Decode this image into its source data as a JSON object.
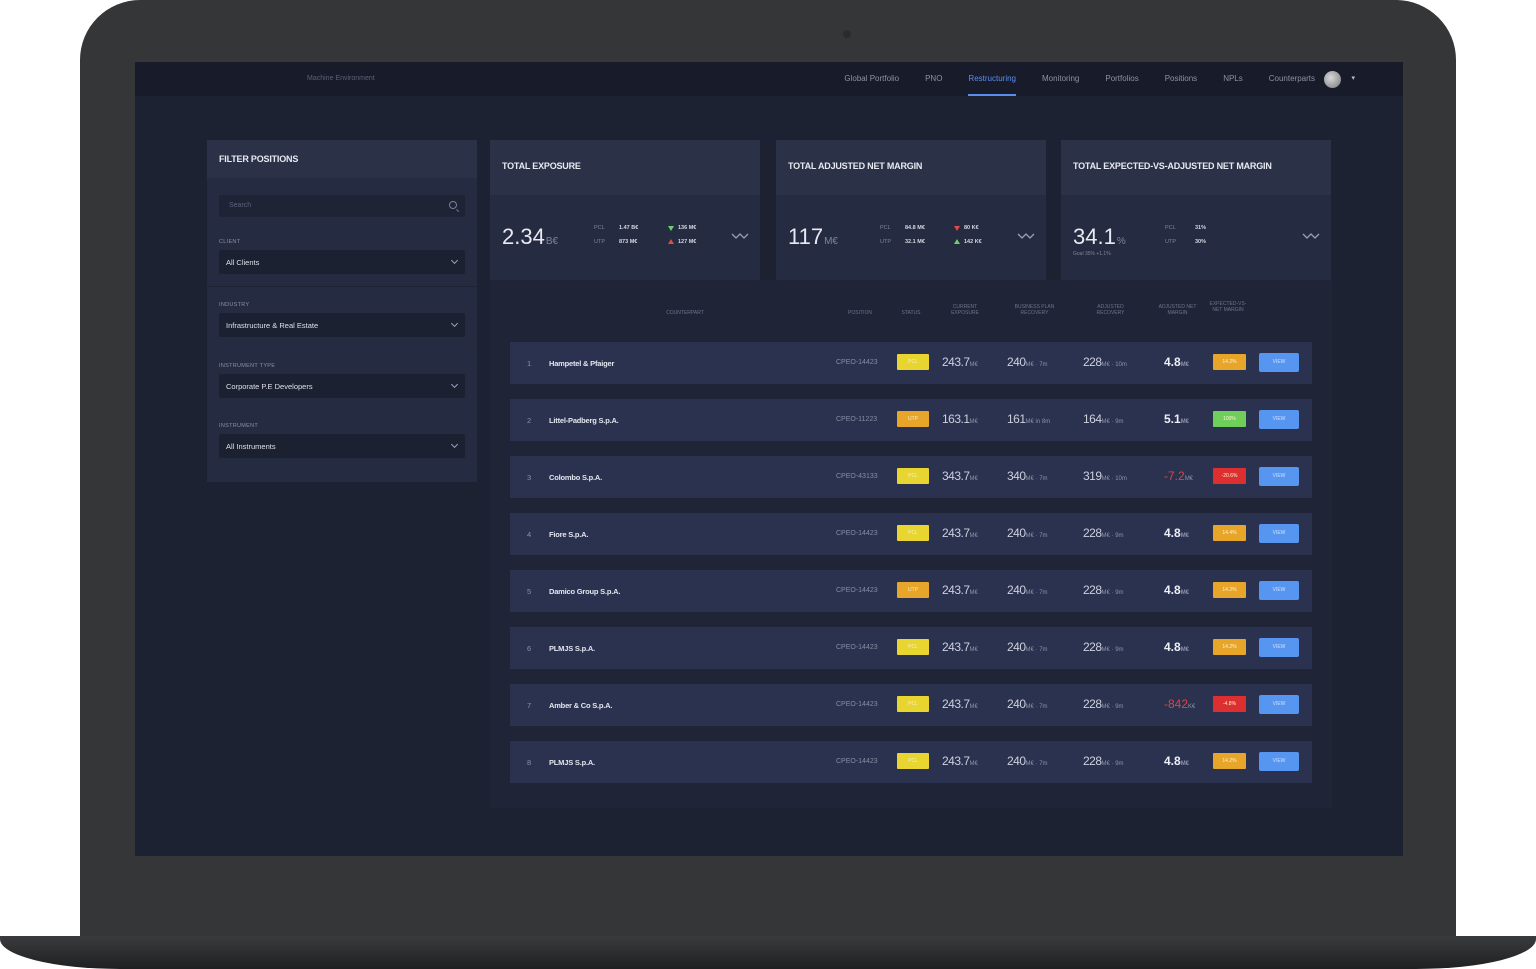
{
  "app": {
    "brand": "Machine Environment"
  },
  "nav": {
    "items": [
      "Global Portfolio",
      "PNO",
      "Restructuring",
      "Monitoring",
      "Portfolios",
      "Positions",
      "NPLs",
      "Counterparts"
    ],
    "active": "Restructuring"
  },
  "filter": {
    "title": "FILTER POSITIONS",
    "search_placeholder": "Search",
    "client_label": "CLIENT",
    "client_value": "All Clients",
    "industry_label": "INDUSTRY",
    "industry_value": "Infrastructure & Real Estate",
    "instrument_type_label": "INSTRUMENT TYPE",
    "instrument_type_value": "Corporate P.E Developers",
    "instrument_label": "INSTRUMENT",
    "instrument_value": "All Instruments"
  },
  "kpis": [
    {
      "title": "TOTAL EXPOSURE",
      "value": "2.34",
      "unit": "B€",
      "l1": "PCL",
      "v1": "1.47 B€",
      "l2": "UTP",
      "v2": "873 M€",
      "d1": "136 M€",
      "d2": "127 M€",
      "goal": ""
    },
    {
      "title": "TOTAL ADJUSTED NET MARGIN",
      "value": "117",
      "unit": "M€",
      "l1": "PCL",
      "v1": "84.8 M€",
      "l2": "UTP",
      "v2": "32.1 M€",
      "d1": "80 K€",
      "d2": "142 K€",
      "goal": ""
    },
    {
      "title": "TOTAL EXPECTED-VS-ADJUSTED NET MARGIN",
      "value": "34.1",
      "unit": "%",
      "l1": "PCL",
      "v1": "31%",
      "l2": "UTP",
      "v2": "30%",
      "d1": "",
      "d2": "",
      "goal": "Goal 35% +1.1%"
    }
  ],
  "table": {
    "headers": [
      "COUNTERPART",
      "POSITION",
      "STATUS",
      "CURRENT EXPOSURE",
      "BUSINESS PLAN RECOVERY",
      "ADJUSTED RECOVERY",
      "ADJUSTED NET MARGIN",
      "EXPECTED-VS-NET MARGIN"
    ],
    "view_label": "VIEW",
    "rows": [
      {
        "idx": "1",
        "name": "Hampetel & Pfaiger",
        "pos": "CPEO-14423",
        "status": "PCL",
        "status_color": "yellow",
        "exp": "243.7",
        "exp_u": "M€",
        "biz": "240",
        "biz_u": "M€ · 7m",
        "adj": "228",
        "adj_u": "M€ · 10m",
        "net": "4.8",
        "net_u": "M€",
        "net_neg": false,
        "badge": "14.2%",
        "badge_color": "orange"
      },
      {
        "idx": "2",
        "name": "Littel-Padberg S.p.A.",
        "pos": "CPEO-11223",
        "status": "UTP",
        "status_color": "orange",
        "exp": "163.1",
        "exp_u": "M€",
        "biz": "161",
        "biz_u": "M€ in 8m",
        "adj": "164",
        "adj_u": "M€ · 9m",
        "net": "5.1",
        "net_u": "M€",
        "net_neg": false,
        "badge": "100%",
        "badge_color": "green"
      },
      {
        "idx": "3",
        "name": "Colombo S.p.A.",
        "pos": "CPEO-43133",
        "status": "PCL",
        "status_color": "yellow",
        "exp": "343.7",
        "exp_u": "M€",
        "biz": "340",
        "biz_u": "M€ · 7m",
        "adj": "319",
        "adj_u": "M€ · 10m",
        "net": "-7.2",
        "net_u": "M€",
        "net_neg": true,
        "badge": "-20.6%",
        "badge_color": "red"
      },
      {
        "idx": "4",
        "name": "Fiore S.p.A.",
        "pos": "CPEO-14423",
        "status": "PCL",
        "status_color": "yellow",
        "exp": "243.7",
        "exp_u": "M€",
        "biz": "240",
        "biz_u": "M€ · 7m",
        "adj": "228",
        "adj_u": "M€ · 9m",
        "net": "4.8",
        "net_u": "M€",
        "net_neg": false,
        "badge": "14.4%",
        "badge_color": "orange"
      },
      {
        "idx": "5",
        "name": "Damico Group S.p.A.",
        "pos": "CPEO-14423",
        "status": "UTP",
        "status_color": "orange",
        "exp": "243.7",
        "exp_u": "M€",
        "biz": "240",
        "biz_u": "M€ · 7m",
        "adj": "228",
        "adj_u": "M€ · 9m",
        "net": "4.8",
        "net_u": "M€",
        "net_neg": false,
        "badge": "14.2%",
        "badge_color": "orange"
      },
      {
        "idx": "6",
        "name": "PLMJS S.p.A.",
        "pos": "CPEO-14423",
        "status": "PCL",
        "status_color": "yellow",
        "exp": "243.7",
        "exp_u": "M€",
        "biz": "240",
        "biz_u": "M€ · 7m",
        "adj": "228",
        "adj_u": "M€ · 9m",
        "net": "4.8",
        "net_u": "M€",
        "net_neg": false,
        "badge": "14.2%",
        "badge_color": "orange"
      },
      {
        "idx": "7",
        "name": "Amber & Co S.p.A.",
        "pos": "CPEO-14423",
        "status": "PCL",
        "status_color": "yellow",
        "exp": "243.7",
        "exp_u": "M€",
        "biz": "240",
        "biz_u": "M€ · 7m",
        "adj": "228",
        "adj_u": "M€ · 9m",
        "net": "-842",
        "net_u": "K€",
        "net_neg": true,
        "badge": "-4.8%",
        "badge_color": "red"
      },
      {
        "idx": "8",
        "name": "PLMJS S.p.A.",
        "pos": "CPEO-14423",
        "status": "PCL",
        "status_color": "yellow",
        "exp": "243.7",
        "exp_u": "M€",
        "biz": "240",
        "biz_u": "M€ · 7m",
        "adj": "228",
        "adj_u": "M€ · 9m",
        "net": "4.8",
        "net_u": "M€",
        "net_neg": false,
        "badge": "14.2%",
        "badge_color": "orange"
      }
    ]
  }
}
